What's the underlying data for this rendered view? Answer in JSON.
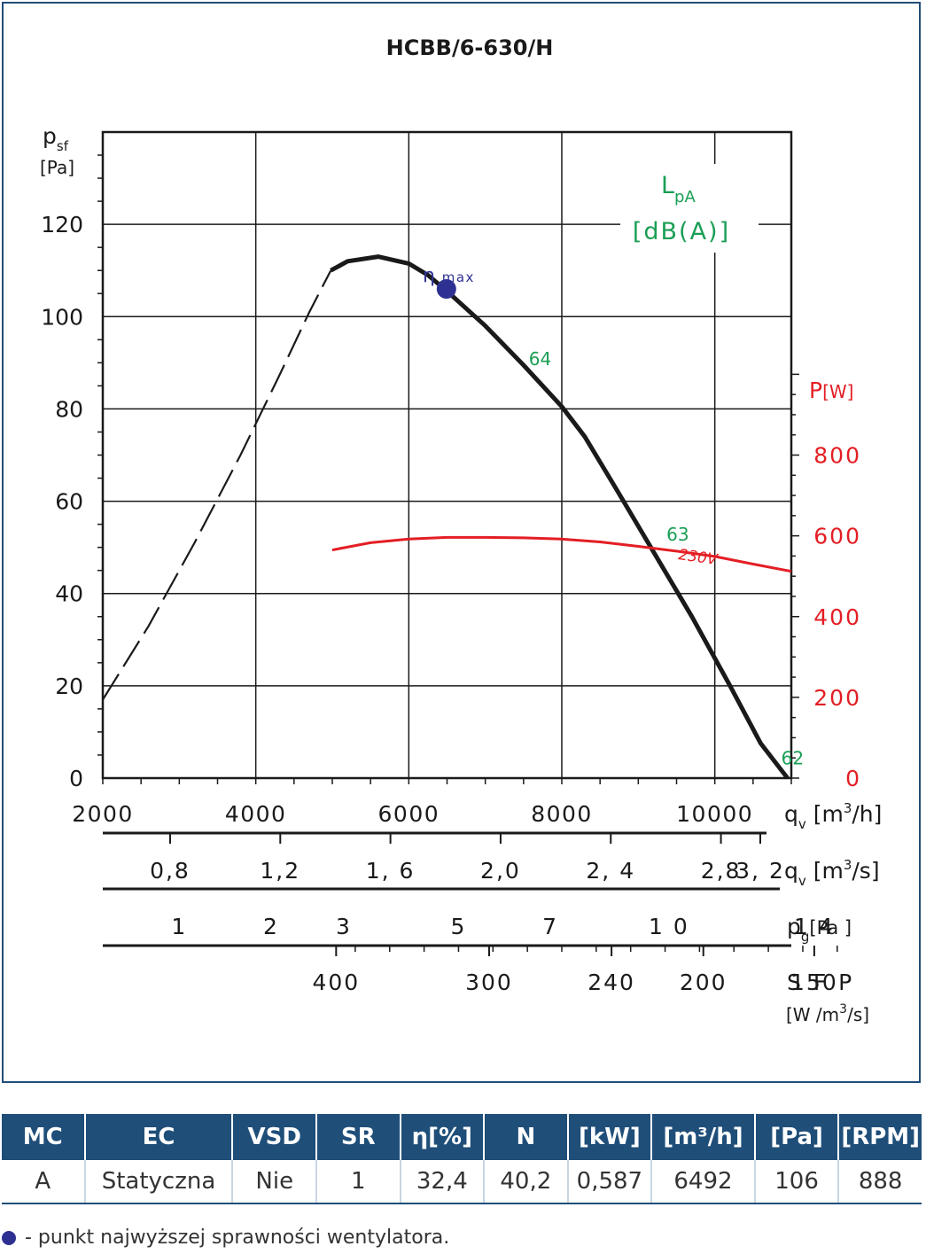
{
  "chart_data": {
    "type": "line",
    "title": "HCBB/6-630/H",
    "x": {
      "ticks": [
        2000,
        4000,
        6000,
        8000,
        10000
      ],
      "tick_labels": [
        "2000",
        "4000",
        "6000",
        "8000",
        "10000"
      ],
      "label": "q",
      "label_sub": "v",
      "unit": "[m",
      "unit_sup": "3",
      "unit_tail": "/h]",
      "range": [
        2000,
        11000
      ]
    },
    "y": {
      "ticks": [
        0,
        20,
        40,
        60,
        80,
        100,
        120
      ],
      "tick_labels": [
        "0",
        "20",
        "40",
        "60",
        "80",
        "100",
        "120"
      ],
      "label": "p",
      "label_sub": "sf",
      "unit": "[Pa]",
      "range": [
        0,
        140
      ]
    },
    "y2": {
      "ticks": [
        0,
        200,
        400,
        600,
        800
      ],
      "tick_labels": [
        "0",
        "200",
        "400",
        "600",
        "800"
      ],
      "label": "P",
      "unit": "[W]",
      "color": "#e31e24",
      "range": [
        0,
        1600
      ]
    },
    "grid": true,
    "series": [
      {
        "style": "dashed",
        "color": "#1a1a1a",
        "points": [
          [
            2000,
            17
          ],
          [
            2600,
            33
          ],
          [
            3200,
            51
          ],
          [
            3800,
            70
          ],
          [
            4300,
            87
          ],
          [
            4700,
            101
          ],
          [
            4980,
            110
          ]
        ]
      },
      {
        "style": "solid",
        "color": "#1a1a1a",
        "points": [
          [
            4980,
            110
          ],
          [
            5200,
            112
          ],
          [
            5600,
            113
          ],
          [
            6000,
            111.5
          ],
          [
            6250,
            109
          ],
          [
            6500,
            105.5
          ],
          [
            7000,
            98
          ],
          [
            7500,
            89.5
          ],
          [
            8000,
            80.5
          ],
          [
            8300,
            74
          ],
          [
            8700,
            63
          ],
          [
            9200,
            49
          ],
          [
            9700,
            35
          ],
          [
            10200,
            20
          ],
          [
            10600,
            7.5
          ],
          [
            10950,
            0
          ]
        ]
      },
      {
        "name": "230V",
        "axis": "y2",
        "style": "solid",
        "color": "#e31e24",
        "points": [
          [
            5000,
            565
          ],
          [
            5500,
            583
          ],
          [
            6000,
            592
          ],
          [
            6500,
            596
          ],
          [
            7000,
            596
          ],
          [
            7500,
            595
          ],
          [
            8000,
            592
          ],
          [
            8500,
            585
          ],
          [
            9000,
            574
          ],
          [
            9500,
            562
          ],
          [
            10000,
            549
          ],
          [
            10500,
            530
          ],
          [
            11000,
            512
          ]
        ]
      }
    ],
    "eta_max": {
      "label": "η",
      "label_suffix": "max",
      "x": 6492,
      "y": 106,
      "color": "#2e3192"
    },
    "sound_levels": {
      "title": "L",
      "title_sub": "pA",
      "unit": "[dB(A)]",
      "color": "#1a9e55",
      "labels": [
        {
          "text": "64",
          "x": 7800,
          "y": 91
        },
        {
          "text": "63",
          "x": 9600,
          "y": 53
        },
        {
          "text": "62",
          "x": 11100,
          "y": 4.5
        }
      ]
    },
    "aux_scales": [
      {
        "id": "qv_m3s",
        "label": "q",
        "label_sub": "v",
        "unit": "[m",
        "unit_sup": "3",
        "unit_tail": "/s]",
        "ticks": [
          {
            "x": 2880,
            "text": "0,8"
          },
          {
            "x": 4320,
            "text": "1,2"
          },
          {
            "x": 5760,
            "text": "1, 6"
          },
          {
            "x": 7200,
            "text": "2,0"
          },
          {
            "x": 8640,
            "text": "2, 4"
          },
          {
            "x": 10080,
            "text": "2,8"
          },
          {
            "x": 11520,
            "text": "3, 2"
          }
        ]
      },
      {
        "id": "pg",
        "label": "p",
        "label_sub": "g",
        "unit": "[Pa ]",
        "ticks": [
          {
            "x": 3000,
            "text": "1"
          },
          {
            "x": 4200,
            "text": "2"
          },
          {
            "x": 5150,
            "text": "3"
          },
          {
            "x": 6650,
            "text": "5"
          },
          {
            "x": 7850,
            "text": "7"
          },
          {
            "x": 9400,
            "text": "1 0"
          },
          {
            "x": 11300,
            "text": "1 4"
          }
        ]
      },
      {
        "id": "sfp",
        "label": "S F P",
        "unit": "[W /m",
        "unit_sup": "3",
        "unit_tail": "/s]",
        "ticks": [
          {
            "x": 5050,
            "text": "400"
          },
          {
            "x": 7050,
            "text": "300"
          },
          {
            "x": 8650,
            "text": "240"
          },
          {
            "x": 9850,
            "text": "200"
          },
          {
            "x": 11300,
            "text": "150"
          }
        ]
      }
    ]
  },
  "table": {
    "headers": [
      "MC",
      "EC",
      "VSD",
      "SR",
      "η[%]",
      "N",
      "[kW]",
      "[m³/h]",
      "[Pa]",
      "[RPM]"
    ],
    "row": [
      "A",
      "Statyczna",
      "Nie",
      "1",
      "32,4",
      "40,2",
      "0,587",
      "6492",
      "106",
      "888"
    ]
  },
  "legend_note": "- punkt najwyższej sprawności wentylatora."
}
